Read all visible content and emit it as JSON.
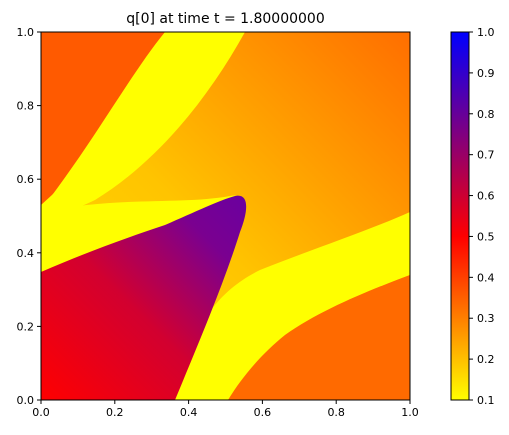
{
  "chart_data": {
    "type": "heatmap",
    "title": "q[0] at time t =     1.80000000",
    "xlim": [
      0.0,
      1.0
    ],
    "ylim": [
      0.0,
      1.0
    ],
    "x_ticks": [
      0.0,
      0.2,
      0.4,
      0.6,
      0.8,
      1.0
    ],
    "y_ticks": [
      0.0,
      0.2,
      0.4,
      0.6,
      0.8,
      1.0
    ],
    "x_tick_labels": [
      "0.0",
      "0.2",
      "0.4",
      "0.6",
      "0.8",
      "1.0"
    ],
    "y_tick_labels": [
      "0.0",
      "0.2",
      "0.4",
      "0.6",
      "0.8",
      "1.0"
    ],
    "colorbar": {
      "range": [
        0.1,
        1.0
      ],
      "ticks": [
        0.1,
        0.2,
        0.3,
        0.4,
        0.5,
        0.6,
        0.7,
        0.8,
        0.9,
        1.0
      ],
      "tick_labels": [
        "0.1",
        "0.2",
        "0.3",
        "0.4",
        "0.5",
        "0.6",
        "0.7",
        "0.8",
        "0.9",
        "1.0"
      ],
      "colors": [
        "#ffff00",
        "#ff0000",
        "#0000ff"
      ]
    },
    "regions": [
      {
        "name": "background band (upper-left)",
        "value": 0.45
      },
      {
        "name": "background gradient",
        "value_range": [
          0.2,
          0.45
        ]
      },
      {
        "name": "low band (upper-left stripe)",
        "value": 0.1
      },
      {
        "name": "low band (lower-right stripe)",
        "value": 0.1
      },
      {
        "name": "background band (lower-right)",
        "value": 0.45
      },
      {
        "name": "high lobe",
        "value_range": [
          0.55,
          0.8
        ],
        "peak": [
          0.52,
          0.53
        ]
      }
    ],
    "grid": false
  }
}
